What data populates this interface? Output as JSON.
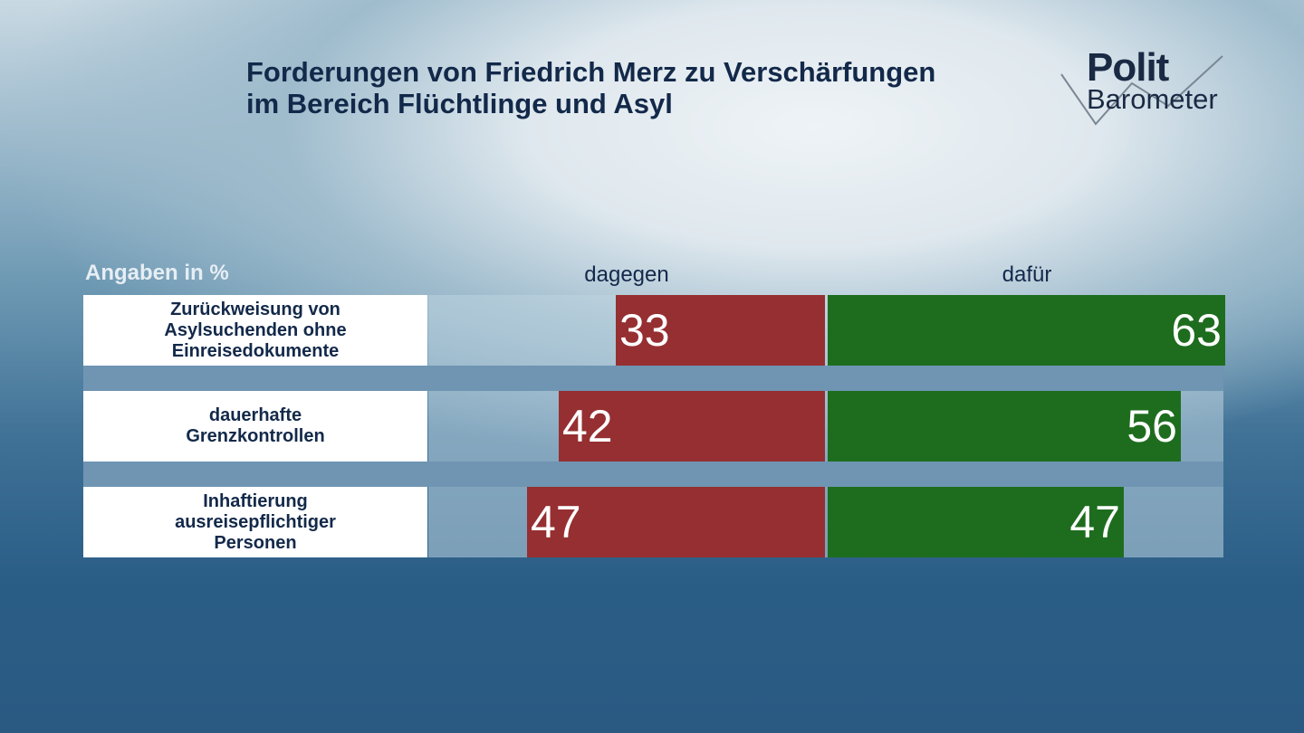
{
  "title_lines": [
    "Forderungen von Friedrich Merz zu Verschärfungen",
    "im Bereich Flüchtlinge und Asyl"
  ],
  "logo": {
    "line1": "Polit",
    "line2": "Barometer"
  },
  "chart_data": {
    "type": "bar",
    "orientation": "horizontal-diverging",
    "title": "Forderungen von Friedrich Merz zu Verschärfungen im Bereich Flüchtlinge und Asyl",
    "unit_label": "Angaben in %",
    "categories": [
      "Zurückweisung von Asylsuchenden ohne Einreisedokumente",
      "dauerhafte Grenzkontrollen",
      "Inhaftierung ausreisepflichtiger Personen"
    ],
    "category_lines": [
      [
        "Zurückweisung von",
        "Asylsuchenden ohne",
        "Einreisedokumente"
      ],
      [
        "dauerhafte",
        "Grenzkontrollen"
      ],
      [
        "Inhaftierung",
        "ausreisepflichtiger",
        "Personen"
      ]
    ],
    "series": [
      {
        "name": "dagegen",
        "values": [
          33,
          42,
          47
        ],
        "color": "#962f31"
      },
      {
        "name": "dafür",
        "values": [
          63,
          56,
          47
        ],
        "color": "#1e6d1e"
      }
    ],
    "xlim": [
      0,
      63
    ],
    "grid": false
  }
}
